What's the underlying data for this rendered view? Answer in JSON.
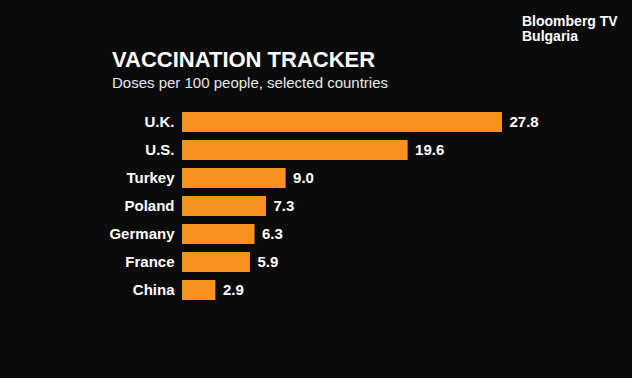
{
  "chart_data": {
    "type": "bar",
    "orientation": "horizontal",
    "title": "VACCINATION TRACKER",
    "subtitle": "Doses per 100 people, selected countries",
    "annotations": [
      "Bloomberg TV Bulgaria"
    ],
    "categories": [
      "U.K.",
      "U.S.",
      "Turkey",
      "Poland",
      "Germany",
      "France",
      "China"
    ],
    "values": [
      27.8,
      19.6,
      9.0,
      7.3,
      6.3,
      5.9,
      2.9
    ],
    "value_labels": [
      "27.8",
      "19.6",
      "9.0",
      "7.3",
      "6.3",
      "5.9",
      "2.9"
    ],
    "color": "#f7921e",
    "data_labels": true,
    "tick_labels": "y",
    "grid": false
  }
}
